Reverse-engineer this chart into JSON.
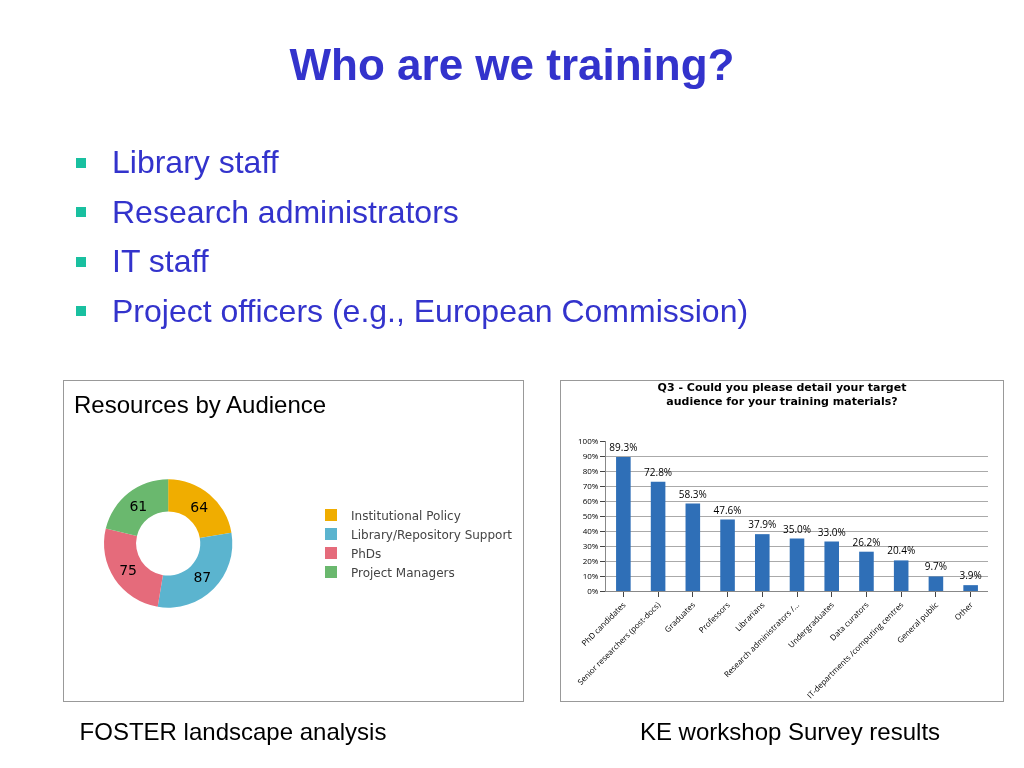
{
  "chart_data": [
    {
      "type": "other",
      "title": "Who are we training?",
      "annotations": [
        "Library staff",
        "Research administrators",
        "IT staff",
        "Project officers (e.g., European Commission)"
      ]
    },
    {
      "type": "donut",
      "title": "Resources by Audience",
      "categories": [
        "Institutional Policy",
        "Library/Repository Support",
        "PhDs",
        "Project Managers"
      ],
      "values": [
        64,
        87,
        75,
        61
      ],
      "colors": [
        "#f0ad00",
        "#5bb4cf",
        "#e56b7b",
        "#6ab86e"
      ],
      "data_labels": true,
      "legend": "right",
      "annotations": [
        "FOSTER landscape analysis"
      ]
    },
    {
      "type": "bar",
      "title": "Q3 - Could you please detail your target audience for your training materials?",
      "categories": [
        "PhD candidates",
        "Senior researchers (post-docs)",
        "Graduates",
        "Professors",
        "Librarians",
        "Research administrators /...",
        "Undergraduates",
        "Data curators",
        "IT-departments /computing centres",
        "General public",
        "Other"
      ],
      "values": [
        89.3,
        72.8,
        58.3,
        47.6,
        37.9,
        35.0,
        33.0,
        26.2,
        20.4,
        9.7,
        3.9
      ],
      "value_labels": [
        "89.3%",
        "72.8%",
        "58.3%",
        "47.6%",
        "37.9%",
        "35.0%",
        "33.0%",
        "26.2%",
        "20.4%",
        "9.7%",
        "3.9%"
      ],
      "color": "#2f6fb7",
      "ylim": [
        0,
        100
      ],
      "yticks": [
        {
          "value": 0,
          "label": "0%"
        },
        {
          "value": 10,
          "label": "10%"
        },
        {
          "value": 20,
          "label": "20%"
        },
        {
          "value": 30,
          "label": "30%"
        },
        {
          "value": 40,
          "label": "40%"
        },
        {
          "value": 50,
          "label": "50%"
        },
        {
          "value": 60,
          "label": "60%"
        },
        {
          "value": 70,
          "label": "70%"
        },
        {
          "value": 80,
          "label": "80%"
        },
        {
          "value": 90,
          "label": "90%"
        },
        {
          "value": 100,
          "label": "100%"
        }
      ],
      "grid": "y",
      "annotations": [
        "KE workshop Survey results"
      ]
    }
  ]
}
